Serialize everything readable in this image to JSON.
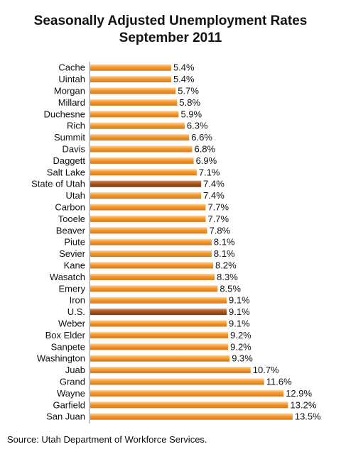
{
  "chart_data": {
    "type": "bar",
    "orientation": "horizontal",
    "title": "Seasonally Adjusted Unemployment Rates",
    "subtitle": "September 2011",
    "categories": [
      "Cache",
      "Uintah",
      "Morgan",
      "Millard",
      "Duchesne",
      "Rich",
      "Summit",
      "Davis",
      "Daggett",
      "Salt Lake",
      "State of Utah",
      "Utah",
      "Carbon",
      "Tooele",
      "Beaver",
      "Piute",
      "Sevier",
      "Kane",
      "Wasatch",
      "Emery",
      "Iron",
      "U.S.",
      "Weber",
      "Box Elder",
      "Sanpete",
      "Washington",
      "Juab",
      "Grand",
      "Wayne",
      "Garfield",
      "San Juan"
    ],
    "values": [
      5.4,
      5.4,
      5.7,
      5.8,
      5.9,
      6.3,
      6.6,
      6.8,
      6.9,
      7.1,
      7.4,
      7.4,
      7.7,
      7.7,
      7.8,
      8.1,
      8.1,
      8.2,
      8.3,
      8.5,
      9.1,
      9.1,
      9.1,
      9.2,
      9.2,
      9.3,
      10.7,
      11.6,
      12.9,
      13.2,
      13.5
    ],
    "labels": [
      "5.4%",
      "5.4%",
      "5.7%",
      "5.8%",
      "5.9%",
      "6.3%",
      "6.6%",
      "6.8%",
      "6.9%",
      "7.1%",
      "7.4%",
      "7.4%",
      "7.7%",
      "7.7%",
      "7.8%",
      "8.1%",
      "8.1%",
      "8.2%",
      "8.3%",
      "8.5%",
      "9.1%",
      "9.1%",
      "9.1%",
      "9.2%",
      "9.2%",
      "9.3%",
      "10.7%",
      "11.6%",
      "12.9%",
      "13.2%",
      "13.5%"
    ],
    "highlighted": [
      "State of Utah",
      "U.S."
    ],
    "colors": {
      "bar": "#f0a030",
      "highlight": "#a0501a"
    },
    "xlim": [
      0,
      13.5
    ],
    "grid": false,
    "legend": "none"
  },
  "source": "Source: Utah Department of Workforce Services."
}
